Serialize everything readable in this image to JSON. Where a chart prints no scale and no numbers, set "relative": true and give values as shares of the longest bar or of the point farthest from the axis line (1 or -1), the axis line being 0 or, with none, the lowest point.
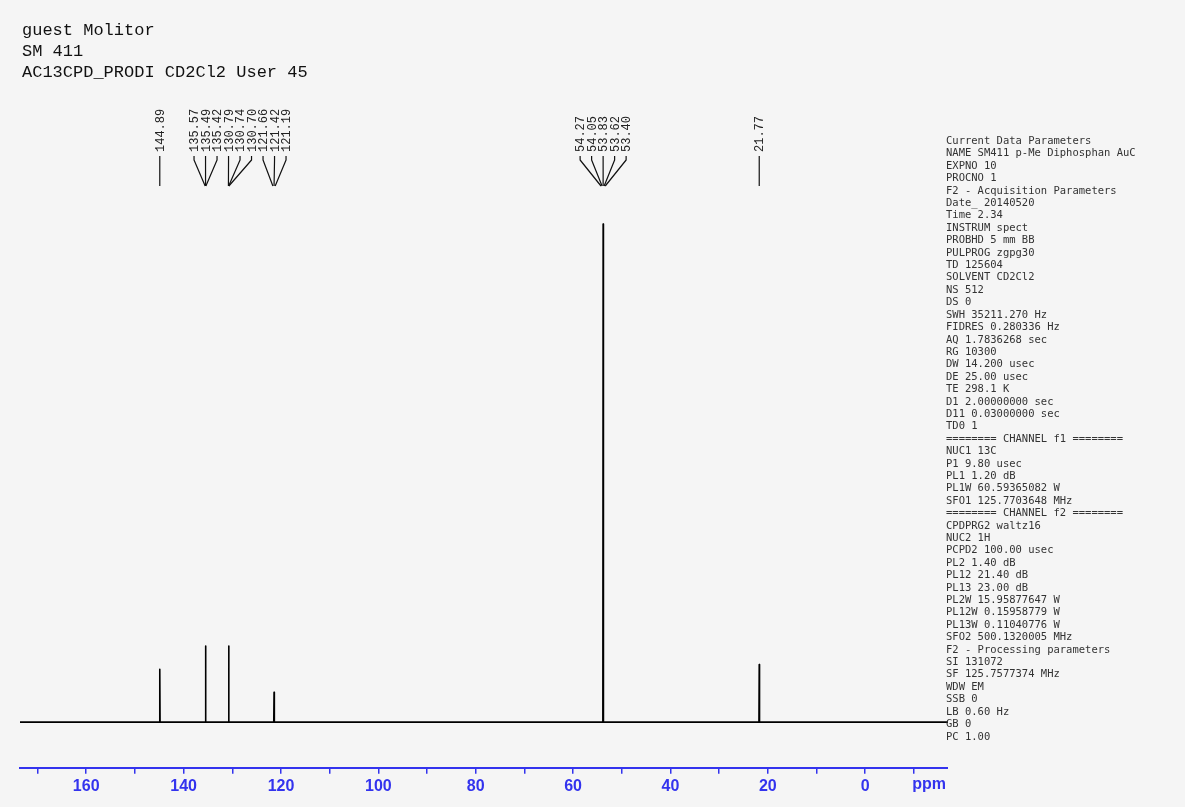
{
  "chart_data": {
    "type": "line",
    "title": "guest Molitor",
    "subtitle": "SM 411",
    "xlabel": "ppm",
    "relative": true,
    "color": "#000000",
    "marker": "none",
    "xlim": [
      173.6,
      -17
    ],
    "xticks": [
      {
        "value": 170,
        "label": null
      },
      160,
      {
        "value": 150,
        "label": null
      },
      140,
      {
        "value": 130,
        "label": null
      },
      120,
      {
        "value": 110,
        "label": null
      },
      100,
      {
        "value": 90,
        "label": null
      },
      80,
      {
        "value": 70,
        "label": null
      },
      60,
      {
        "value": 50,
        "label": null
      },
      40,
      {
        "value": 30,
        "label": null
      },
      20,
      {
        "value": 10,
        "label": null
      },
      0,
      {
        "value": -10,
        "label": null
      }
    ],
    "x": [
      173.6,
      144.95,
      144.89,
      144.83,
      135.55,
      135.49,
      135.43,
      130.8,
      130.74,
      130.68,
      121.48,
      121.42,
      121.36,
      53.89,
      53.83,
      53.77,
      21.83,
      21.77,
      21.71,
      -17
    ],
    "values": [
      0.084,
      0.084,
      0.181,
      0.084,
      0.084,
      0.224,
      0.084,
      0.084,
      0.224,
      0.084,
      0.084,
      0.139,
      0.084,
      0.084,
      1,
      0.084,
      0.084,
      0.19,
      0.084,
      0.084
    ],
    "annotations": [
      "AC13CPD_PRODI CD2Cl2 User 45",
      {
        "text": "144.89",
        "x": 144.89
      },
      {
        "text": "135.57",
        "x": 135.57
      },
      {
        "text": "135.49",
        "x": 135.49
      },
      {
        "text": "135.42",
        "x": 135.42
      },
      {
        "text": "130.79",
        "x": 130.79
      },
      {
        "text": "130.74",
        "x": 130.74
      },
      {
        "text": "130.70",
        "x": 130.7
      },
      {
        "text": "121.66",
        "x": 121.66
      },
      {
        "text": "121.42",
        "x": 121.42
      },
      {
        "text": "121.19",
        "x": 121.19
      },
      {
        "text": "54.27",
        "x": 54.27
      },
      {
        "text": "54.05",
        "x": 54.05
      },
      {
        "text": "53.83",
        "x": 53.83
      },
      {
        "text": "53.62",
        "x": 53.62
      },
      {
        "text": "53.40",
        "x": 53.4
      },
      {
        "text": "21.77",
        "x": 21.77
      },
      "Current Data Parameters",
      "NAME SM411 p-Me Diphosphan AuC",
      "EXPNO 10",
      "PROCNO 1",
      "F2 - Acquisition Parameters",
      "Date_ 20140520",
      "Time 2.34",
      "INSTRUM spect",
      "PROBHD 5 mm BB",
      "PULPROG zgpg30",
      "TD 125604",
      "SOLVENT CD2Cl2",
      "NS 512",
      "DS 0",
      "SWH 35211.270 Hz",
      "FIDRES 0.280336 Hz",
      "AQ 1.7836268 sec",
      "RG 10300",
      "DW 14.200 usec",
      "DE 25.00 usec",
      "TE 298.1 K",
      "D1 2.00000000 sec",
      "D11 0.03000000 sec",
      "TD0 1",
      "======== CHANNEL f1 ========",
      "NUC1 13C",
      "P1 9.80 usec",
      "PL1 1.20 dB",
      "PL1W 60.59365082 W",
      "SFO1 125.7703648 MHz",
      "======== CHANNEL f2 ========",
      "CPDPRG2 waltz16",
      "NUC2 1H",
      "PCPD2 100.00 usec",
      "PL2 1.40 dB",
      "PL12 21.40 dB",
      "PL13 23.00 dB",
      "PL2W 15.95877647 W",
      "PL12W 0.15958779 W",
      "PL13W 0.11040776 W",
      "SFO2 500.1320005 MHz",
      "F2 - Processing parameters",
      "SI 131072",
      "SF 125.7577374 MHz",
      "WDW EM",
      "SSB 0",
      "LB 0.60 Hz",
      "GB 0",
      "PC 1.00"
    ]
  }
}
